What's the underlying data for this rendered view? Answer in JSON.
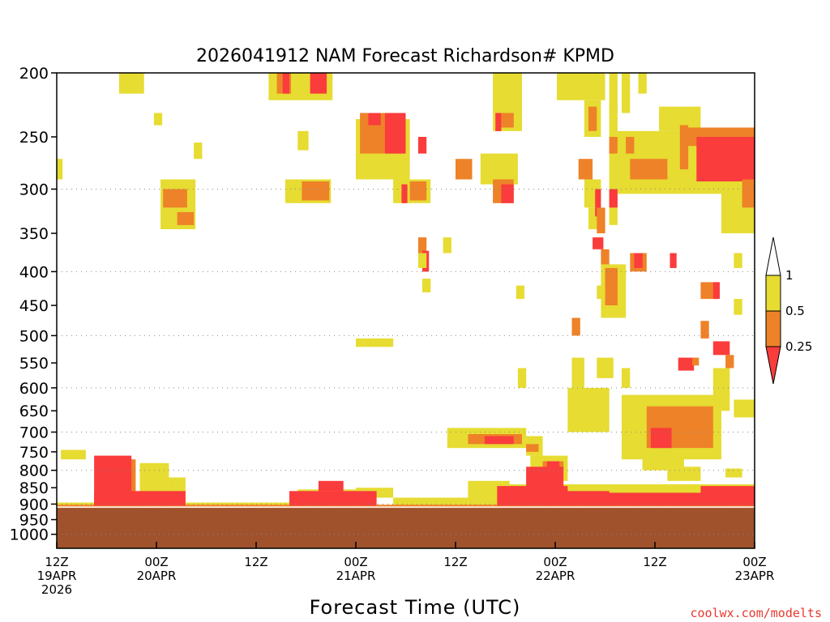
{
  "chart_data": {
    "type": "heatmap",
    "title": "2026041912 NAM Forecast Richardson# KPMD",
    "xlabel": "Forecast Time (UTC)",
    "ylabel": "",
    "watermark": "coolwx.com/modelts",
    "xlim_hours": [
      0,
      84
    ],
    "ylim_hpa": [
      200,
      1050
    ],
    "y_scale": "log-pressure (inverted)",
    "x_ticks": [
      {
        "hour": 0,
        "line1": "12Z",
        "line2": "19APR",
        "line3": "2026"
      },
      {
        "hour": 12,
        "line1": "00Z",
        "line2": "20APR",
        "line3": ""
      },
      {
        "hour": 24,
        "line1": "12Z",
        "line2": "",
        "line3": ""
      },
      {
        "hour": 36,
        "line1": "00Z",
        "line2": "21APR",
        "line3": ""
      },
      {
        "hour": 48,
        "line1": "12Z",
        "line2": "",
        "line3": ""
      },
      {
        "hour": 60,
        "line1": "00Z",
        "line2": "22APR",
        "line3": ""
      },
      {
        "hour": 72,
        "line1": "12Z",
        "line2": "",
        "line3": ""
      },
      {
        "hour": 84,
        "line1": "00Z",
        "line2": "23APR",
        "line3": ""
      }
    ],
    "y_ticks": [
      200,
      250,
      300,
      350,
      400,
      450,
      500,
      550,
      600,
      650,
      700,
      750,
      800,
      850,
      900,
      950,
      1000
    ],
    "gridlines_hpa": [
      300,
      400,
      500,
      600,
      700,
      800,
      900,
      1000
    ],
    "legend": {
      "placement": "right",
      "labels": [
        "1",
        "0.5",
        "0.25"
      ],
      "bins": [
        {
          "range": "> 1",
          "color": "#ffffff"
        },
        {
          "range": "0.5 - 1",
          "color": "#e6dc32"
        },
        {
          "range": "0.25 - 0.5",
          "color": "#ee8228"
        },
        {
          "range": "< 0.25",
          "color": "#fa3c3c"
        }
      ]
    },
    "ground": {
      "color": "#a0522d",
      "surface_pressure_hpa": 912
    },
    "regions": [
      {
        "value": "0.5-1",
        "t0": 0,
        "t1": 0.7,
        "p0": 270,
        "p1": 290
      },
      {
        "value": "0.5-1",
        "t0": 0.5,
        "t1": 3.5,
        "p0": 745,
        "p1": 770
      },
      {
        "value": "0.5-1",
        "t0": 7.5,
        "t1": 10.5,
        "p0": 200,
        "p1": 215
      },
      {
        "value": "0.5-1",
        "t0": 11.7,
        "t1": 12.7,
        "p0": 230,
        "p1": 240
      },
      {
        "value": "0.5-1",
        "t0": 12.5,
        "t1": 16.7,
        "p0": 290,
        "p1": 345
      },
      {
        "value": "0.25-0.5",
        "t0": 12.8,
        "t1": 15.7,
        "p0": 300,
        "p1": 320
      },
      {
        "value": "0.25-0.5",
        "t0": 14.5,
        "t1": 16.5,
        "p0": 325,
        "p1": 340
      },
      {
        "value": "0.5-1",
        "t0": 16.5,
        "t1": 17.5,
        "p0": 255,
        "p1": 270
      },
      {
        "value": "0.5-1",
        "t0": 25.5,
        "t1": 33.2,
        "p0": 200,
        "p1": 220
      },
      {
        "value": "0.25-0.5",
        "t0": 26.5,
        "t1": 28.2,
        "p0": 200,
        "p1": 215
      },
      {
        "value": "<0.25",
        "t0": 27.2,
        "t1": 28.0,
        "p0": 200,
        "p1": 215
      },
      {
        "value": "<0.25",
        "t0": 30.5,
        "t1": 32.5,
        "p0": 200,
        "p1": 215
      },
      {
        "value": "0.5-1",
        "t0": 29.0,
        "t1": 30.3,
        "p0": 245,
        "p1": 262
      },
      {
        "value": "0.5-1",
        "t0": 27.5,
        "t1": 33.0,
        "p0": 290,
        "p1": 315
      },
      {
        "value": "0.25-0.5",
        "t0": 29.5,
        "t1": 32.8,
        "p0": 292,
        "p1": 312
      },
      {
        "value": "0.5-1",
        "t0": 36.0,
        "t1": 37.0,
        "p0": 505,
        "p1": 520
      },
      {
        "value": "0.5-1",
        "t0": 37.0,
        "t1": 40.5,
        "p0": 505,
        "p1": 520
      },
      {
        "value": "0.5-1",
        "t0": 36.0,
        "t1": 42.5,
        "p0": 235,
        "p1": 290
      },
      {
        "value": "0.25-0.5",
        "t0": 36.5,
        "t1": 41.5,
        "p0": 230,
        "p1": 265
      },
      {
        "value": "<0.25",
        "t0": 37.5,
        "t1": 39.0,
        "p0": 230,
        "p1": 240
      },
      {
        "value": "<0.25",
        "t0": 39.5,
        "t1": 42.0,
        "p0": 230,
        "p1": 265
      },
      {
        "value": "<0.25",
        "t0": 43.5,
        "t1": 44.5,
        "p0": 250,
        "p1": 265
      },
      {
        "value": "0.5-1",
        "t0": 40.5,
        "t1": 45.0,
        "p0": 290,
        "p1": 315
      },
      {
        "value": "0.25-0.5",
        "t0": 42.5,
        "t1": 44.5,
        "p0": 292,
        "p1": 312
      },
      {
        "value": "<0.25",
        "t0": 41.5,
        "t1": 42.2,
        "p0": 295,
        "p1": 315
      },
      {
        "value": "0.25-0.5",
        "t0": 43.5,
        "t1": 44.5,
        "p0": 355,
        "p1": 375
      },
      {
        "value": "<0.25",
        "t0": 44.0,
        "t1": 44.8,
        "p0": 372,
        "p1": 400
      },
      {
        "value": "0.5-1",
        "t0": 43.5,
        "t1": 44.5,
        "p0": 375,
        "p1": 395
      },
      {
        "value": "0.5-1",
        "t0": 46.5,
        "t1": 47.5,
        "p0": 355,
        "p1": 375
      },
      {
        "value": "0.5-1",
        "t0": 44.0,
        "t1": 45.0,
        "p0": 410,
        "p1": 430
      },
      {
        "value": "0.25-0.5",
        "t0": 48.0,
        "t1": 50.0,
        "p0": 270,
        "p1": 290
      },
      {
        "value": "0.5-1",
        "t0": 51.0,
        "t1": 55.5,
        "p0": 265,
        "p1": 295
      },
      {
        "value": "0.25-0.5",
        "t0": 52.5,
        "t1": 55.0,
        "p0": 290,
        "p1": 315
      },
      {
        "value": "<0.25",
        "t0": 53.5,
        "t1": 55.0,
        "p0": 295,
        "p1": 315
      },
      {
        "value": "0.5-1",
        "t0": 52.5,
        "t1": 56.0,
        "p0": 200,
        "p1": 245
      },
      {
        "value": "0.25-0.5",
        "t0": 53.5,
        "t1": 55.0,
        "p0": 230,
        "p1": 242
      },
      {
        "value": "<0.25",
        "t0": 52.8,
        "t1": 53.5,
        "p0": 230,
        "p1": 245
      },
      {
        "value": "0.5-1",
        "t0": 55.3,
        "t1": 56.3,
        "p0": 420,
        "p1": 440
      },
      {
        "value": "0.5-1",
        "t0": 60.2,
        "t1": 66.0,
        "p0": 200,
        "p1": 220
      },
      {
        "value": "0.5-1",
        "t0": 63.5,
        "t1": 65.5,
        "p0": 220,
        "p1": 250
      },
      {
        "value": "0.25-0.5",
        "t0": 64.0,
        "t1": 65.0,
        "p0": 225,
        "p1": 245
      },
      {
        "value": "0.5-1",
        "t0": 66.5,
        "t1": 67.5,
        "p0": 200,
        "p1": 230
      },
      {
        "value": "0.25-0.5",
        "t0": 62.8,
        "t1": 64.5,
        "p0": 270,
        "p1": 290
      },
      {
        "value": "0.5-1",
        "t0": 63.5,
        "t1": 65.5,
        "p0": 290,
        "p1": 320
      },
      {
        "value": "0.5-1",
        "t0": 64.0,
        "t1": 65.5,
        "p0": 320,
        "p1": 345
      },
      {
        "value": "<0.25",
        "t0": 64.8,
        "t1": 65.5,
        "p0": 300,
        "p1": 330
      },
      {
        "value": "0.25-0.5",
        "t0": 65.0,
        "t1": 66.0,
        "p0": 320,
        "p1": 350
      },
      {
        "value": "<0.25",
        "t0": 64.5,
        "t1": 65.8,
        "p0": 355,
        "p1": 370
      },
      {
        "value": "0.25-0.5",
        "t0": 65.5,
        "t1": 66.5,
        "p0": 370,
        "p1": 395
      },
      {
        "value": "0.5-1",
        "t0": 65.5,
        "t1": 68.5,
        "p0": 390,
        "p1": 470
      },
      {
        "value": "0.25-0.5",
        "t0": 66.0,
        "t1": 67.5,
        "p0": 395,
        "p1": 450
      },
      {
        "value": "0.5-1",
        "t0": 65.0,
        "t1": 66.0,
        "p0": 420,
        "p1": 440
      },
      {
        "value": "0.5-1",
        "t0": 66.5,
        "t1": 67.5,
        "p0": 225,
        "p1": 340
      },
      {
        "value": "<0.25",
        "t0": 66.5,
        "t1": 67.5,
        "p0": 300,
        "p1": 320
      },
      {
        "value": "0.25-0.5",
        "t0": 66.5,
        "t1": 67.5,
        "p0": 250,
        "p1": 265
      },
      {
        "value": "0.5-1",
        "t0": 68.0,
        "t1": 69.0,
        "p0": 200,
        "p1": 230
      },
      {
        "value": "0.5-1",
        "t0": 70.0,
        "t1": 71.0,
        "p0": 200,
        "p1": 215
      },
      {
        "value": "0.5-1",
        "t0": 67.5,
        "t1": 84.0,
        "p0": 245,
        "p1": 305
      },
      {
        "value": "0.5-1",
        "t0": 72.5,
        "t1": 77.5,
        "p0": 225,
        "p1": 245
      },
      {
        "value": "0.5-1",
        "t0": 80.0,
        "t1": 84.0,
        "p0": 300,
        "p1": 350
      },
      {
        "value": "0.25-0.5",
        "t0": 68.5,
        "t1": 69.5,
        "p0": 250,
        "p1": 265
      },
      {
        "value": "0.25-0.5",
        "t0": 69.0,
        "t1": 73.5,
        "p0": 270,
        "p1": 290
      },
      {
        "value": "0.25-0.5",
        "t0": 75.0,
        "t1": 76.0,
        "p0": 240,
        "p1": 280
      },
      {
        "value": "0.25-0.5",
        "t0": 76.0,
        "t1": 84.0,
        "p0": 242,
        "p1": 258
      },
      {
        "value": "<0.25",
        "t0": 77.0,
        "t1": 84.0,
        "p0": 250,
        "p1": 292
      },
      {
        "value": "0.25-0.5",
        "t0": 82.5,
        "t1": 84.0,
        "p0": 290,
        "p1": 320
      },
      {
        "value": "0.25-0.5",
        "t0": 69.0,
        "t1": 71.0,
        "p0": 375,
        "p1": 400
      },
      {
        "value": "<0.25",
        "t0": 69.5,
        "t1": 70.5,
        "p0": 375,
        "p1": 395
      },
      {
        "value": "<0.25",
        "t0": 73.8,
        "t1": 74.6,
        "p0": 375,
        "p1": 395
      },
      {
        "value": "0.5-1",
        "t0": 81.5,
        "t1": 82.5,
        "p0": 375,
        "p1": 395
      },
      {
        "value": "0.25-0.5",
        "t0": 77.5,
        "t1": 79.5,
        "p0": 415,
        "p1": 440
      },
      {
        "value": "<0.25",
        "t0": 79.0,
        "t1": 79.8,
        "p0": 415,
        "p1": 440
      },
      {
        "value": "0.5-1",
        "t0": 81.5,
        "t1": 82.5,
        "p0": 440,
        "p1": 465
      },
      {
        "value": "0.25-0.5",
        "t0": 77.5,
        "t1": 78.5,
        "p0": 475,
        "p1": 505
      },
      {
        "value": "<0.25",
        "t0": 79.0,
        "t1": 81.0,
        "p0": 510,
        "p1": 535
      },
      {
        "value": "0.25-0.5",
        "t0": 80.5,
        "t1": 81.5,
        "p0": 535,
        "p1": 560
      },
      {
        "value": "<0.25",
        "t0": 74.8,
        "t1": 76.7,
        "p0": 540,
        "p1": 565
      },
      {
        "value": "0.25-0.5",
        "t0": 76.5,
        "t1": 77.3,
        "p0": 540,
        "p1": 555
      },
      {
        "value": "0.5-1",
        "t0": 79.0,
        "t1": 81.0,
        "p0": 560,
        "p1": 650
      },
      {
        "value": "0.5-1",
        "t0": 81.5,
        "t1": 84.0,
        "p0": 625,
        "p1": 665
      },
      {
        "value": "0.25-0.5",
        "t0": 62.0,
        "t1": 63.0,
        "p0": 470,
        "p1": 500
      },
      {
        "value": "0.5-1",
        "t0": 62.0,
        "t1": 63.5,
        "p0": 540,
        "p1": 600
      },
      {
        "value": "0.5-1",
        "t0": 55.5,
        "t1": 56.5,
        "p0": 560,
        "p1": 600
      },
      {
        "value": "0.5-1",
        "t0": 61.5,
        "t1": 66.5,
        "p0": 600,
        "p1": 700
      },
      {
        "value": "0.5-1",
        "t0": 65.0,
        "t1": 67.0,
        "p0": 540,
        "p1": 580
      },
      {
        "value": "0.5-1",
        "t0": 68.0,
        "t1": 69.0,
        "p0": 560,
        "p1": 600
      },
      {
        "value": "0.5-1",
        "t0": 68.0,
        "t1": 80.0,
        "p0": 615,
        "p1": 770
      },
      {
        "value": "0.25-0.5",
        "t0": 71.0,
        "t1": 79.0,
        "p0": 640,
        "p1": 740
      },
      {
        "value": "<0.25",
        "t0": 71.5,
        "t1": 74.0,
        "p0": 690,
        "p1": 740
      },
      {
        "value": "0.5-1",
        "t0": 70.5,
        "t1": 75.5,
        "p0": 750,
        "p1": 800
      },
      {
        "value": "0.5-1",
        "t0": 47.0,
        "t1": 56.5,
        "p0": 690,
        "p1": 740
      },
      {
        "value": "0.25-0.5",
        "t0": 49.5,
        "t1": 56.0,
        "p0": 705,
        "p1": 730
      },
      {
        "value": "<0.25",
        "t0": 51.5,
        "t1": 55.0,
        "p0": 710,
        "p1": 730
      },
      {
        "value": "0.5-1",
        "t0": 56.5,
        "t1": 58.5,
        "p0": 710,
        "p1": 760
      },
      {
        "value": "0.25-0.5",
        "t0": 56.5,
        "t1": 58.0,
        "p0": 730,
        "p1": 750
      },
      {
        "value": "0.5-1",
        "t0": 57.0,
        "t1": 61.5,
        "p0": 760,
        "p1": 830
      },
      {
        "value": "0.25-0.5",
        "t0": 58.5,
        "t1": 61.0,
        "p0": 775,
        "p1": 815
      },
      {
        "value": "<0.25",
        "t0": 59.0,
        "t1": 60.5,
        "p0": 775,
        "p1": 800
      },
      {
        "value": "0.5-1",
        "t0": 73.5,
        "t1": 77.5,
        "p0": 790,
        "p1": 830
      },
      {
        "value": "0.5-1",
        "t0": 80.5,
        "t1": 82.5,
        "p0": 795,
        "p1": 820
      },
      {
        "value": "0.5-1",
        "t0": 5.0,
        "t1": 7.5,
        "p0": 775,
        "p1": 860
      },
      {
        "value": "0.25-0.5",
        "t0": 5.5,
        "t1": 9.5,
        "p0": 770,
        "p1": 880
      },
      {
        "value": "0.5-1",
        "t0": 10.0,
        "t1": 13.5,
        "p0": 780,
        "p1": 905
      },
      {
        "value": "0.5-1",
        "t0": 13.5,
        "t1": 15.5,
        "p0": 820,
        "p1": 900
      },
      {
        "value": "0.5-1",
        "t0": 0.0,
        "t1": 28.5,
        "p0": 895,
        "p1": 912
      },
      {
        "value": "0.5-1",
        "t0": 29.0,
        "t1": 36.0,
        "p0": 855,
        "p1": 905
      },
      {
        "value": "0.5-1",
        "t0": 36.0,
        "t1": 40.5,
        "p0": 850,
        "p1": 880
      },
      {
        "value": "0.5-1",
        "t0": 40.5,
        "t1": 49.5,
        "p0": 880,
        "p1": 912
      },
      {
        "value": "0.5-1",
        "t0": 49.5,
        "t1": 54.5,
        "p0": 830,
        "p1": 910
      },
      {
        "value": "0.5-1",
        "t0": 54.5,
        "t1": 84.0,
        "p0": 840,
        "p1": 912
      },
      {
        "value": "0.25-0.5",
        "t0": 0.0,
        "t1": 84.0,
        "p0": 902,
        "p1": 912
      },
      {
        "value": "<0.25",
        "t0": 4.5,
        "t1": 9.0,
        "p0": 760,
        "p1": 905
      },
      {
        "value": "<0.25",
        "t0": 4.5,
        "t1": 15.5,
        "p0": 860,
        "p1": 905
      },
      {
        "value": "<0.25",
        "t0": 28.0,
        "t1": 38.5,
        "p0": 860,
        "p1": 905
      },
      {
        "value": "<0.25",
        "t0": 31.5,
        "t1": 34.5,
        "p0": 830,
        "p1": 860
      },
      {
        "value": "<0.25",
        "t0": 53.0,
        "t1": 61.5,
        "p0": 845,
        "p1": 905
      },
      {
        "value": "<0.25",
        "t0": 56.5,
        "t1": 61.0,
        "p0": 790,
        "p1": 850
      },
      {
        "value": "<0.25",
        "t0": 61.0,
        "t1": 66.5,
        "p0": 860,
        "p1": 905
      },
      {
        "value": "<0.25",
        "t0": 66.0,
        "t1": 84.0,
        "p0": 865,
        "p1": 905
      },
      {
        "value": "<0.25",
        "t0": 77.5,
        "t1": 84.0,
        "p0": 845,
        "p1": 870
      }
    ]
  }
}
